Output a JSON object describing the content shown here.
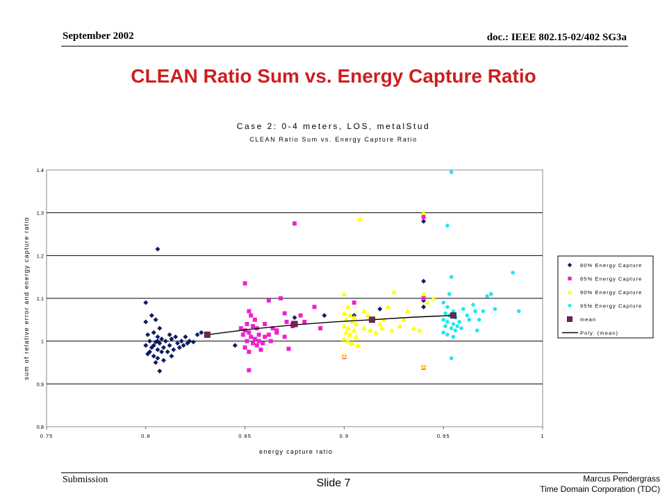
{
  "header": {
    "date": "September 2002",
    "doc": "doc.: IEEE 802.15-02/402 SG3a"
  },
  "slide_title": "CLEAN Ratio Sum vs. Energy Capture Ratio",
  "footer": {
    "submission": "Submission",
    "slide": "Slide 7",
    "author": "Marcus Pendergrass",
    "org": "Time Domain Corporation (TDC)"
  },
  "colors": {
    "navy": "#0a1a6e",
    "magenta": "#ee22cc",
    "yellow": "#ffff00",
    "cyan": "#22e6ee",
    "mean": "#7b1f5e"
  },
  "chart_data": {
    "type": "scatter",
    "title": "Case 2: 0-4 meters, LOS, metalStud",
    "subtitle": "CLEAN Ratio Sum vs. Energy Capture Ratio",
    "xlabel": "energy capture ratio",
    "ylabel": "sum of relative error and energy capture ratio",
    "xlim": [
      0.75,
      1
    ],
    "ylim": [
      0.8,
      1.4
    ],
    "xticks": [
      "0.75",
      "0.8",
      "0.85",
      "0.9",
      "0.95",
      "1"
    ],
    "yticks": [
      "0.8",
      "0.9",
      "1",
      "1.1",
      "1.2",
      "1.3",
      "1.4"
    ],
    "grid": "horizontal",
    "legend_position": "right",
    "series": [
      {
        "name": "80% Energy Capture",
        "marker": "diamond",
        "color": "#0a1a6e",
        "points": [
          [
            0.8,
            1.09
          ],
          [
            0.803,
            1.06
          ],
          [
            0.806,
            1.215
          ],
          [
            0.8,
            1.045
          ],
          [
            0.805,
            1.05
          ],
          [
            0.807,
            1.03
          ],
          [
            0.801,
            1.015
          ],
          [
            0.804,
            1.02
          ],
          [
            0.806,
            1.01
          ],
          [
            0.808,
            1.005
          ],
          [
            0.802,
            1.0
          ],
          [
            0.805,
            0.998
          ],
          [
            0.807,
            0.995
          ],
          [
            0.8,
            0.99
          ],
          [
            0.803,
            0.985
          ],
          [
            0.806,
            0.98
          ],
          [
            0.808,
            0.975
          ],
          [
            0.801,
            0.97
          ],
          [
            0.804,
            0.965
          ],
          [
            0.806,
            0.96
          ],
          [
            0.809,
            0.955
          ],
          [
            0.805,
            0.95
          ],
          [
            0.807,
            0.93
          ],
          [
            0.81,
            1.0
          ],
          [
            0.812,
            0.99
          ],
          [
            0.813,
            1.005
          ],
          [
            0.815,
            1.01
          ],
          [
            0.816,
            0.995
          ],
          [
            0.814,
            0.98
          ],
          [
            0.818,
            1.0
          ],
          [
            0.82,
            1.01
          ],
          [
            0.822,
            1.0
          ],
          [
            0.824,
            0.998
          ],
          [
            0.826,
            1.015
          ],
          [
            0.828,
            1.02
          ],
          [
            0.811,
            0.975
          ],
          [
            0.813,
            0.965
          ],
          [
            0.809,
            0.985
          ],
          [
            0.802,
            0.975
          ],
          [
            0.804,
            0.99
          ],
          [
            0.806,
            1.0
          ],
          [
            0.819,
            0.99
          ],
          [
            0.821,
            0.995
          ],
          [
            0.817,
            0.985
          ],
          [
            0.812,
            1.015
          ],
          [
            0.845,
            0.99
          ],
          [
            0.875,
            1.055
          ],
          [
            0.89,
            1.06
          ],
          [
            0.905,
            1.06
          ],
          [
            0.918,
            1.075
          ],
          [
            0.94,
            1.08
          ],
          [
            0.94,
            1.095
          ],
          [
            0.94,
            1.14
          ],
          [
            0.94,
            1.28
          ]
        ]
      },
      {
        "name": "85% Energy Capture",
        "marker": "square",
        "color": "#ee22cc",
        "points": [
          [
            0.85,
            1.135
          ],
          [
            0.852,
            1.07
          ],
          [
            0.853,
            1.06
          ],
          [
            0.855,
            1.05
          ],
          [
            0.851,
            1.04
          ],
          [
            0.854,
            1.035
          ],
          [
            0.856,
            1.03
          ],
          [
            0.85,
            1.025
          ],
          [
            0.852,
            1.02
          ],
          [
            0.857,
            1.015
          ],
          [
            0.853,
            1.01
          ],
          [
            0.855,
            1.005
          ],
          [
            0.851,
            1.0
          ],
          [
            0.854,
            0.995
          ],
          [
            0.856,
            0.99
          ],
          [
            0.85,
            0.985
          ],
          [
            0.852,
            0.975
          ],
          [
            0.858,
            0.98
          ],
          [
            0.852,
            0.932
          ],
          [
            0.86,
            1.04
          ],
          [
            0.862,
            1.095
          ],
          [
            0.864,
            1.03
          ],
          [
            0.866,
            1.02
          ],
          [
            0.868,
            1.1
          ],
          [
            0.87,
            1.065
          ],
          [
            0.872,
            0.982
          ],
          [
            0.874,
            1.035
          ],
          [
            0.875,
            1.275
          ],
          [
            0.878,
            1.06
          ],
          [
            0.88,
            1.045
          ],
          [
            0.885,
            1.08
          ],
          [
            0.888,
            1.03
          ],
          [
            0.86,
            1.01
          ],
          [
            0.863,
            1.0
          ],
          [
            0.866,
            1.025
          ],
          [
            0.87,
            1.01
          ],
          [
            0.857,
            1.0
          ],
          [
            0.859,
            0.995
          ],
          [
            0.862,
            1.015
          ],
          [
            0.848,
            1.03
          ],
          [
            0.849,
            1.015
          ],
          [
            0.871,
            1.045
          ],
          [
            0.874,
            1.04
          ],
          [
            0.9,
            0.963
          ],
          [
            0.905,
            1.09
          ],
          [
            0.94,
            0.938
          ],
          [
            0.94,
            1.29
          ],
          [
            0.94,
            1.1
          ]
        ]
      },
      {
        "name": "90% Energy Capture",
        "marker": "triangle",
        "color": "#ffff00",
        "points": [
          [
            0.9,
            1.11
          ],
          [
            0.902,
            1.08
          ],
          [
            0.9,
            1.065
          ],
          [
            0.903,
            1.06
          ],
          [
            0.905,
            1.055
          ],
          [
            0.901,
            1.05
          ],
          [
            0.904,
            1.045
          ],
          [
            0.906,
            1.04
          ],
          [
            0.9,
            1.035
          ],
          [
            0.902,
            1.03
          ],
          [
            0.905,
            1.025
          ],
          [
            0.901,
            1.02
          ],
          [
            0.903,
            1.015
          ],
          [
            0.906,
            1.01
          ],
          [
            0.9,
            1.005
          ],
          [
            0.902,
            1.0
          ],
          [
            0.904,
            0.995
          ],
          [
            0.907,
            0.99
          ],
          [
            0.908,
            1.285
          ],
          [
            0.91,
            1.07
          ],
          [
            0.912,
            1.06
          ],
          [
            0.915,
            1.055
          ],
          [
            0.918,
            1.04
          ],
          [
            0.92,
            1.05
          ],
          [
            0.922,
            1.08
          ],
          [
            0.925,
            1.115
          ],
          [
            0.928,
            1.035
          ],
          [
            0.93,
            1.05
          ],
          [
            0.935,
            1.03
          ],
          [
            0.938,
            1.025
          ],
          [
            0.94,
            1.11
          ],
          [
            0.942,
            1.09
          ],
          [
            0.945,
            1.1
          ],
          [
            0.94,
            1.3
          ],
          [
            0.94,
            0.94
          ],
          [
            0.9,
            0.965
          ],
          [
            0.91,
            1.03
          ],
          [
            0.913,
            1.025
          ],
          [
            0.916,
            1.02
          ],
          [
            0.919,
            1.03
          ],
          [
            0.924,
            1.025
          ],
          [
            0.932,
            1.07
          ]
        ]
      },
      {
        "name": "95% Energy Capture",
        "marker": "circle",
        "color": "#22e6ee",
        "points": [
          [
            0.954,
            1.395
          ],
          [
            0.952,
            1.27
          ],
          [
            0.954,
            1.15
          ],
          [
            0.953,
            1.11
          ],
          [
            0.95,
            1.09
          ],
          [
            0.952,
            1.08
          ],
          [
            0.955,
            1.07
          ],
          [
            0.951,
            1.065
          ],
          [
            0.953,
            1.06
          ],
          [
            0.956,
            1.055
          ],
          [
            0.95,
            1.05
          ],
          [
            0.952,
            1.045
          ],
          [
            0.955,
            1.04
          ],
          [
            0.951,
            1.035
          ],
          [
            0.954,
            1.03
          ],
          [
            0.956,
            1.025
          ],
          [
            0.95,
            1.02
          ],
          [
            0.952,
            1.015
          ],
          [
            0.955,
            1.01
          ],
          [
            0.954,
            0.96
          ],
          [
            0.96,
            1.075
          ],
          [
            0.962,
            1.06
          ],
          [
            0.965,
            1.085
          ],
          [
            0.968,
            1.05
          ],
          [
            0.97,
            1.07
          ],
          [
            0.972,
            1.105
          ],
          [
            0.974,
            1.11
          ],
          [
            0.976,
            1.075
          ],
          [
            0.985,
            1.16
          ],
          [
            0.988,
            1.07
          ],
          [
            0.958,
            1.045
          ],
          [
            0.963,
            1.05
          ],
          [
            0.966,
            1.07
          ],
          [
            0.967,
            1.025
          ],
          [
            0.957,
            1.035
          ],
          [
            0.959,
            1.03
          ]
        ]
      },
      {
        "name": "mean",
        "marker": "square-large",
        "color": "#7b1f5e",
        "points": [
          [
            0.831,
            1.015
          ],
          [
            0.875,
            1.04
          ],
          [
            0.914,
            1.05
          ],
          [
            0.955,
            1.06
          ]
        ]
      },
      {
        "name": "Poly. (mean)",
        "marker": "line",
        "color": "#000000",
        "points": [
          [
            0.831,
            1.015
          ],
          [
            0.853,
            1.028
          ],
          [
            0.875,
            1.038
          ],
          [
            0.895,
            1.045
          ],
          [
            0.914,
            1.05
          ],
          [
            0.935,
            1.056
          ],
          [
            0.955,
            1.06
          ]
        ]
      }
    ]
  }
}
